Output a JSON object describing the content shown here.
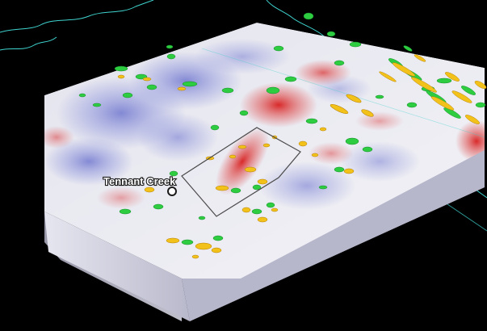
{
  "view": {
    "background_color": "#000000",
    "coastline_color": "#3fd4cf",
    "block_top_base_color": "#eeeef4",
    "block_side_color": "#d8d8e8",
    "positive_anomaly_color": "#d81f1f",
    "negative_anomaly_color": "#5860c8",
    "isosurface_colors": [
      "#2ecc40",
      "#f2c21b"
    ],
    "outline_color": "#4a4a4a"
  },
  "location": {
    "name": "Tennant Creek",
    "marker": "circle-marker"
  }
}
